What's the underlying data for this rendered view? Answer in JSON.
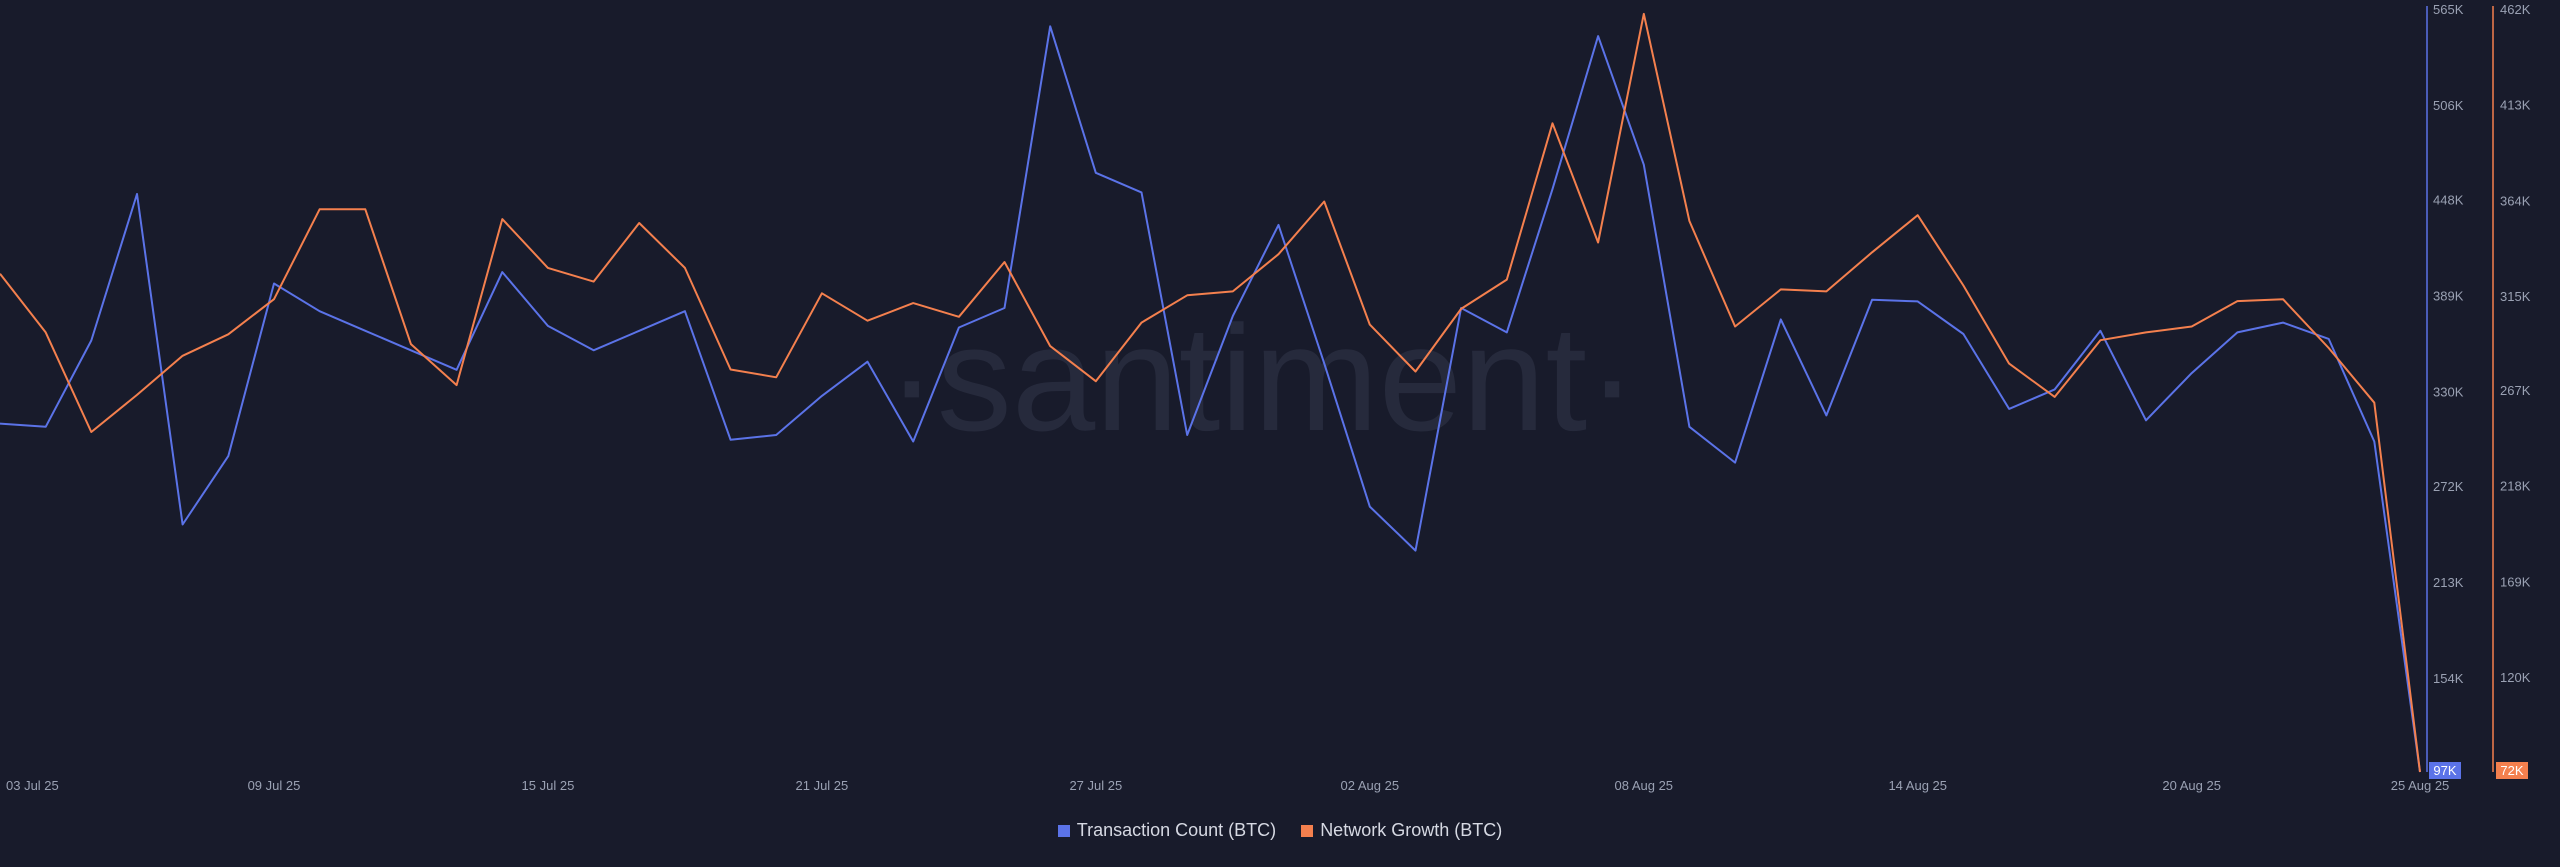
{
  "watermark": "·santiment·",
  "colors": {
    "background": "#181b2b",
    "tx": "#5b73e8",
    "ng": "#f4804e"
  },
  "legend": [
    {
      "label": "Transaction Count (BTC)",
      "color": "#5b73e8"
    },
    {
      "label": "Network Growth (BTC)",
      "color": "#f4804e"
    }
  ],
  "chart_data": {
    "type": "line",
    "grid": false,
    "legend_placement": "bottom-center",
    "x": [
      "03 Jul 25",
      "04 Jul 25",
      "05 Jul 25",
      "06 Jul 25",
      "07 Jul 25",
      "08 Jul 25",
      "09 Jul 25",
      "10 Jul 25",
      "11 Jul 25",
      "12 Jul 25",
      "13 Jul 25",
      "14 Jul 25",
      "15 Jul 25",
      "16 Jul 25",
      "17 Jul 25",
      "18 Jul 25",
      "19 Jul 25",
      "20 Jul 25",
      "21 Jul 25",
      "22 Jul 25",
      "23 Jul 25",
      "24 Jul 25",
      "25 Jul 25",
      "26 Jul 25",
      "27 Jul 25",
      "28 Jul 25",
      "29 Jul 25",
      "30 Jul 25",
      "31 Jul 25",
      "01 Aug 25",
      "02 Aug 25",
      "03 Aug 25",
      "04 Aug 25",
      "05 Aug 25",
      "06 Aug 25",
      "07 Aug 25",
      "08 Aug 25",
      "09 Aug 25",
      "10 Aug 25",
      "11 Aug 25",
      "12 Aug 25",
      "13 Aug 25",
      "14 Aug 25",
      "15 Aug 25",
      "16 Aug 25",
      "17 Aug 25",
      "18 Aug 25",
      "19 Aug 25",
      "20 Aug 25",
      "21 Aug 25",
      "22 Aug 25",
      "23 Aug 25",
      "24 Aug 25",
      "25 Aug 25"
    ],
    "x_ticks": [
      "03 Jul 25",
      "09 Jul 25",
      "15 Jul 25",
      "21 Jul 25",
      "27 Jul 25",
      "02 Aug 25",
      "08 Aug 25",
      "14 Aug 25",
      "20 Aug 25",
      "25 Aug 25"
    ],
    "series": [
      {
        "name": "Transaction Count (BTC)",
        "color": "#5b73e8",
        "axis": "left",
        "values": [
          311000,
          309000,
          362000,
          452000,
          249000,
          291000,
          397000,
          380000,
          368000,
          356000,
          344000,
          404000,
          371000,
          356000,
          368000,
          380000,
          301000,
          304000,
          328000,
          349000,
          300000,
          370000,
          382000,
          555000,
          465000,
          453000,
          304000,
          377000,
          433000,
          348000,
          260000,
          233000,
          382000,
          367000,
          455000,
          549000,
          470000,
          309000,
          287000,
          375000,
          316000,
          387000,
          386000,
          366000,
          320000,
          332000,
          368000,
          313000,
          342000,
          367000,
          373000,
          363000,
          300000,
          97000
        ]
      },
      {
        "name": "Network Growth (BTC)",
        "color": "#f4804e",
        "axis": "right",
        "values": [
          327000,
          297000,
          246000,
          265000,
          285000,
          296000,
          314000,
          360000,
          360000,
          291000,
          270000,
          355000,
          330000,
          323000,
          353000,
          330000,
          278000,
          274000,
          317000,
          303000,
          312000,
          305000,
          333000,
          290000,
          272000,
          302000,
          316000,
          318000,
          337000,
          364000,
          301000,
          277000,
          309000,
          324000,
          404000,
          343000,
          460000,
          354000,
          300000,
          319000,
          318000,
          338000,
          357000,
          321000,
          281000,
          264000,
          293000,
          297000,
          300000,
          313000,
          314000,
          289000,
          261000,
          72000
        ]
      }
    ],
    "y_left": {
      "ticks": [
        "154K",
        "213K",
        "272K",
        "330K",
        "389K",
        "448K",
        "506K",
        "565K"
      ],
      "min": 97000,
      "max": 565000,
      "badge": "97K"
    },
    "y_right": {
      "ticks": [
        "120K",
        "169K",
        "218K",
        "267K",
        "315K",
        "364K",
        "413K",
        "462K"
      ],
      "min": 72000,
      "max": 462000,
      "badge": "72K"
    }
  }
}
